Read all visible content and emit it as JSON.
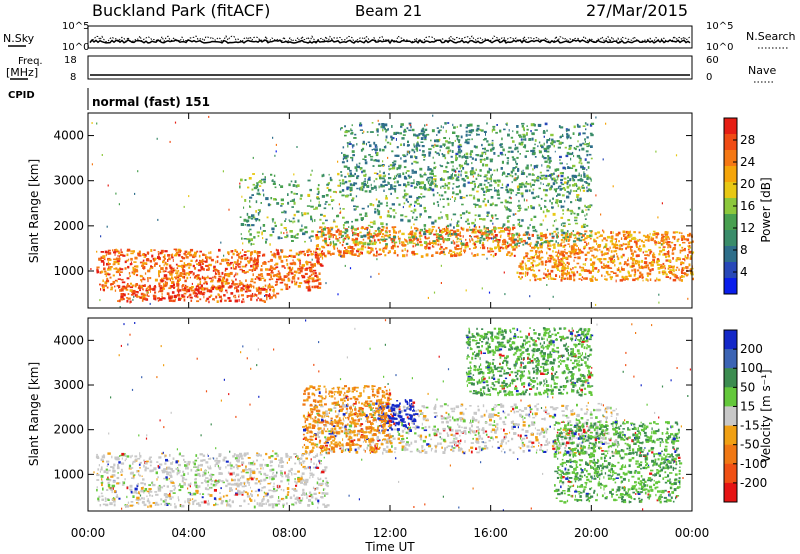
{
  "header": {
    "station": "Buckland Park (fitACF)",
    "beam": "Beam 21",
    "date": "27/Mar/2015"
  },
  "noise_panel": {
    "left_label": "N.Sky",
    "right_label": "N.Search",
    "left_ticks": [
      "10^5",
      "10^0"
    ],
    "right_ticks": [
      "10^5",
      "10^0"
    ]
  },
  "freq_panel": {
    "left_label_1": "Freq.",
    "left_label_2": "[MHz]",
    "right_label": "Nave",
    "left_ticks": [
      "18",
      "8"
    ],
    "right_ticks": [
      "60",
      "0"
    ]
  },
  "cpid_panel": {
    "label": "CPID",
    "mode": "normal (fast) 151"
  },
  "power_panel": {
    "ylabel": "Slant Range [km]",
    "yticks": [
      "4000",
      "3000",
      "2000",
      "1000"
    ],
    "colorbar_label": "Power [dB]",
    "colorbar_ticks": [
      "28",
      "24",
      "20",
      "16",
      "12",
      "8",
      "4"
    ],
    "colors": [
      "#0a1eeb",
      "#2848b8",
      "#2e6e8a",
      "#3a8c6a",
      "#48a050",
      "#8cc83c",
      "#e8c814",
      "#f5a50a",
      "#f57814",
      "#f04b14",
      "#e61e14"
    ]
  },
  "velocity_panel": {
    "ylabel": "Slant Range [km]",
    "yticks": [
      "4000",
      "3000",
      "2000",
      "1000"
    ],
    "colorbar_label": "Velocity [m s⁻¹]",
    "colorbar_ticks": [
      "200",
      "100",
      "50",
      "15",
      "-15",
      "-50",
      "-100",
      "-200"
    ],
    "colors": [
      "#1428c8",
      "#3c64b4",
      "#3c8c50",
      "#64c83c",
      "#c8c8c8",
      "#f0a014",
      "#f07814",
      "#f05014",
      "#e61414"
    ]
  },
  "time_axis": {
    "label": "Time UT",
    "ticks": [
      "00:00",
      "04:00",
      "08:00",
      "12:00",
      "16:00",
      "20:00",
      "00:00"
    ]
  },
  "chart_data": {
    "type": "heatmap",
    "title": "Buckland Park (fitACF)",
    "x_range_hours": [
      0,
      24
    ],
    "y_range_km": [
      180,
      4500
    ],
    "power": {
      "zlabel": "Power [dB]",
      "zrange": [
        0,
        30
      ],
      "regions": [
        {
          "x": [
            0.3,
            9.3
          ],
          "y": [
            600,
            1500
          ],
          "z": 24
        },
        {
          "x": [
            1.0,
            7.5
          ],
          "y": [
            340,
            700
          ],
          "z": 26
        },
        {
          "x": [
            9.0,
            17.0
          ],
          "y": [
            1350,
            2000
          ],
          "z": 23
        },
        {
          "x": [
            17.0,
            24.0
          ],
          "y": [
            800,
            1900
          ],
          "z": 22
        },
        {
          "x": [
            6.0,
            20.0
          ],
          "y": [
            1600,
            3200
          ],
          "z": 12
        },
        {
          "x": [
            10.0,
            20.0
          ],
          "y": [
            2800,
            4300
          ],
          "z": 10
        }
      ]
    },
    "velocity": {
      "zlabel": "Velocity [m s⁻¹]",
      "zrange": [
        -200,
        200
      ],
      "regions": [
        {
          "x": [
            0.3,
            9.5
          ],
          "y": [
            300,
            1500
          ],
          "z": 0
        },
        {
          "x": [
            9.0,
            21.0
          ],
          "y": [
            1500,
            2600
          ],
          "z": 0
        },
        {
          "x": [
            11.5,
            13.0
          ],
          "y": [
            2000,
            2700
          ],
          "z": 180
        },
        {
          "x": [
            8.5,
            12.0
          ],
          "y": [
            1500,
            3000
          ],
          "z": -60
        },
        {
          "x": [
            15.0,
            20.0
          ],
          "y": [
            2800,
            4300
          ],
          "z": 60
        },
        {
          "x": [
            18.5,
            23.5
          ],
          "y": [
            400,
            2200
          ],
          "z": 60
        }
      ]
    }
  }
}
